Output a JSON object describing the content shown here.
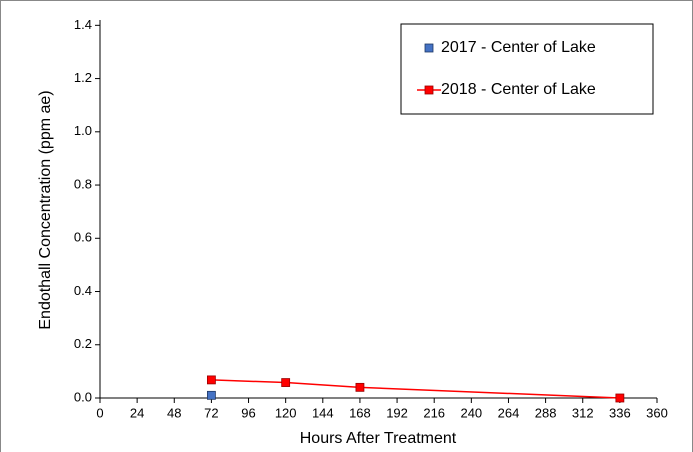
{
  "chart_data": {
    "type": "line",
    "x_label": "Hours After Treatment",
    "y_label": "Endothall Concentration (ppm ae)",
    "xlim": [
      0,
      360
    ],
    "ylim": [
      0,
      1.42
    ],
    "xticks": [
      0,
      24,
      48,
      72,
      96,
      120,
      144,
      168,
      192,
      216,
      240,
      264,
      288,
      312,
      336,
      360
    ],
    "yticks": [
      {
        "value": 0,
        "label": "0.0"
      },
      0.2,
      0.4,
      0.6,
      0.8,
      {
        "value": 1,
        "label": "1.0"
      },
      1.2,
      1.4
    ],
    "legend": "upper right",
    "series": [
      {
        "name": "2017 - Center of Lake",
        "color": "#4472c4",
        "show_line": false,
        "x": [
          72
        ],
        "values": [
          0.01
        ]
      },
      {
        "name": "2018 - Center of Lake",
        "color": "#ff0000",
        "show_line": true,
        "x": [
          72,
          120,
          168,
          336
        ],
        "values": [
          0.068,
          0.058,
          0.04,
          0.0
        ]
      }
    ]
  }
}
